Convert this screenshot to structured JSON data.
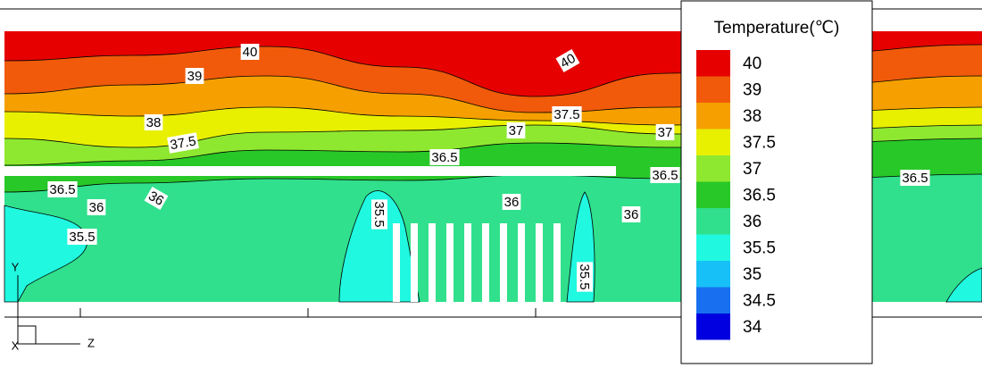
{
  "chart_data": {
    "type": "contour",
    "legend_title": "Temperature(℃)",
    "levels": [
      {
        "value": 40,
        "color": "#e60000"
      },
      {
        "value": 39,
        "color": "#f05a0a"
      },
      {
        "value": 38,
        "color": "#f5a000"
      },
      {
        "value": 37.5,
        "color": "#e8f000"
      },
      {
        "value": 37,
        "color": "#8ee830"
      },
      {
        "value": 36.5,
        "color": "#28c828"
      },
      {
        "value": 36,
        "color": "#30e08c"
      },
      {
        "value": 35.5,
        "color": "#20f8e0"
      },
      {
        "value": 35,
        "color": "#18c0f8"
      },
      {
        "value": 34.5,
        "color": "#1870f0"
      },
      {
        "value": 34,
        "color": "#0000e0"
      }
    ],
    "contour_labels": [
      40,
      40,
      39,
      38,
      37.5,
      37.5,
      37,
      37,
      36.5,
      36.5,
      36.5,
      36.5,
      36,
      36,
      36,
      36,
      35.5,
      35.5,
      35.5
    ],
    "axis_labels": {
      "y": "Y",
      "x": "X",
      "z": "Z"
    }
  }
}
